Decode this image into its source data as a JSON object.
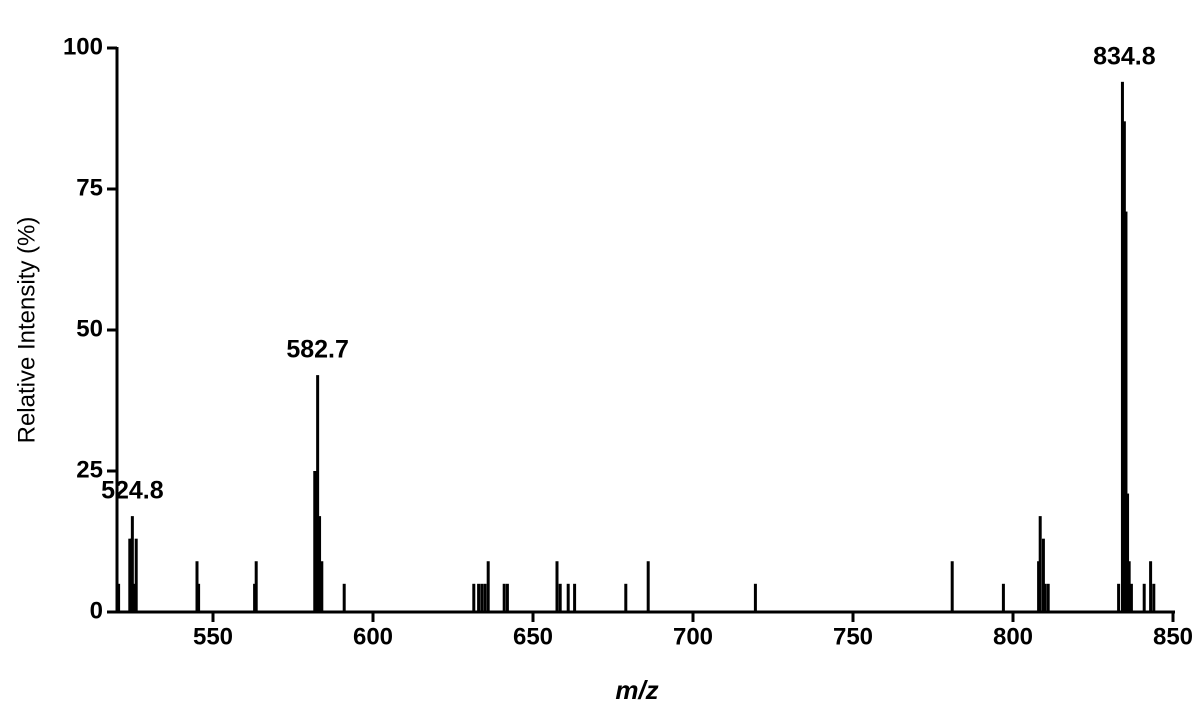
{
  "chart_data": {
    "type": "bar",
    "xlabel": "m/z",
    "ylabel": "Relative Intensity (%)",
    "x": [
      520.5,
      524,
      524.5,
      524.8,
      525.5,
      526,
      545,
      545.5,
      563,
      563.5,
      581.8,
      582.2,
      582.7,
      583.3,
      584,
      591,
      631.5,
      633,
      634,
      635,
      636,
      641,
      642,
      657.5,
      658.5,
      661,
      663,
      679,
      686,
      719.5,
      781,
      797,
      808,
      808.5,
      809.5,
      810,
      811,
      833,
      834.2,
      834.8,
      835.3,
      835.8,
      836.3,
      837,
      841,
      843,
      844
    ],
    "values": [
      5,
      13,
      13,
      17,
      5,
      13,
      9,
      5,
      5,
      9,
      25,
      25,
      42,
      17,
      9,
      5,
      5,
      5,
      5,
      5,
      9,
      5,
      5,
      9,
      5,
      5,
      5,
      5,
      9,
      5,
      9,
      5,
      9,
      17,
      13,
      5,
      5,
      5,
      94,
      87,
      71,
      21,
      9,
      5,
      5,
      9,
      5
    ],
    "color": "#000000",
    "annotations": [
      {
        "label": "524.8",
        "x": 524.8
      },
      {
        "label": "582.7",
        "x": 582.7
      },
      {
        "label": "834.8",
        "x": 834.8
      }
    ],
    "xlim": [
      520,
      850
    ],
    "xticks": [
      550,
      600,
      650,
      700,
      750,
      800,
      850
    ],
    "ylim": [
      0,
      100
    ],
    "yticks": [
      0,
      25,
      50,
      75,
      100
    ],
    "grid": false
  }
}
